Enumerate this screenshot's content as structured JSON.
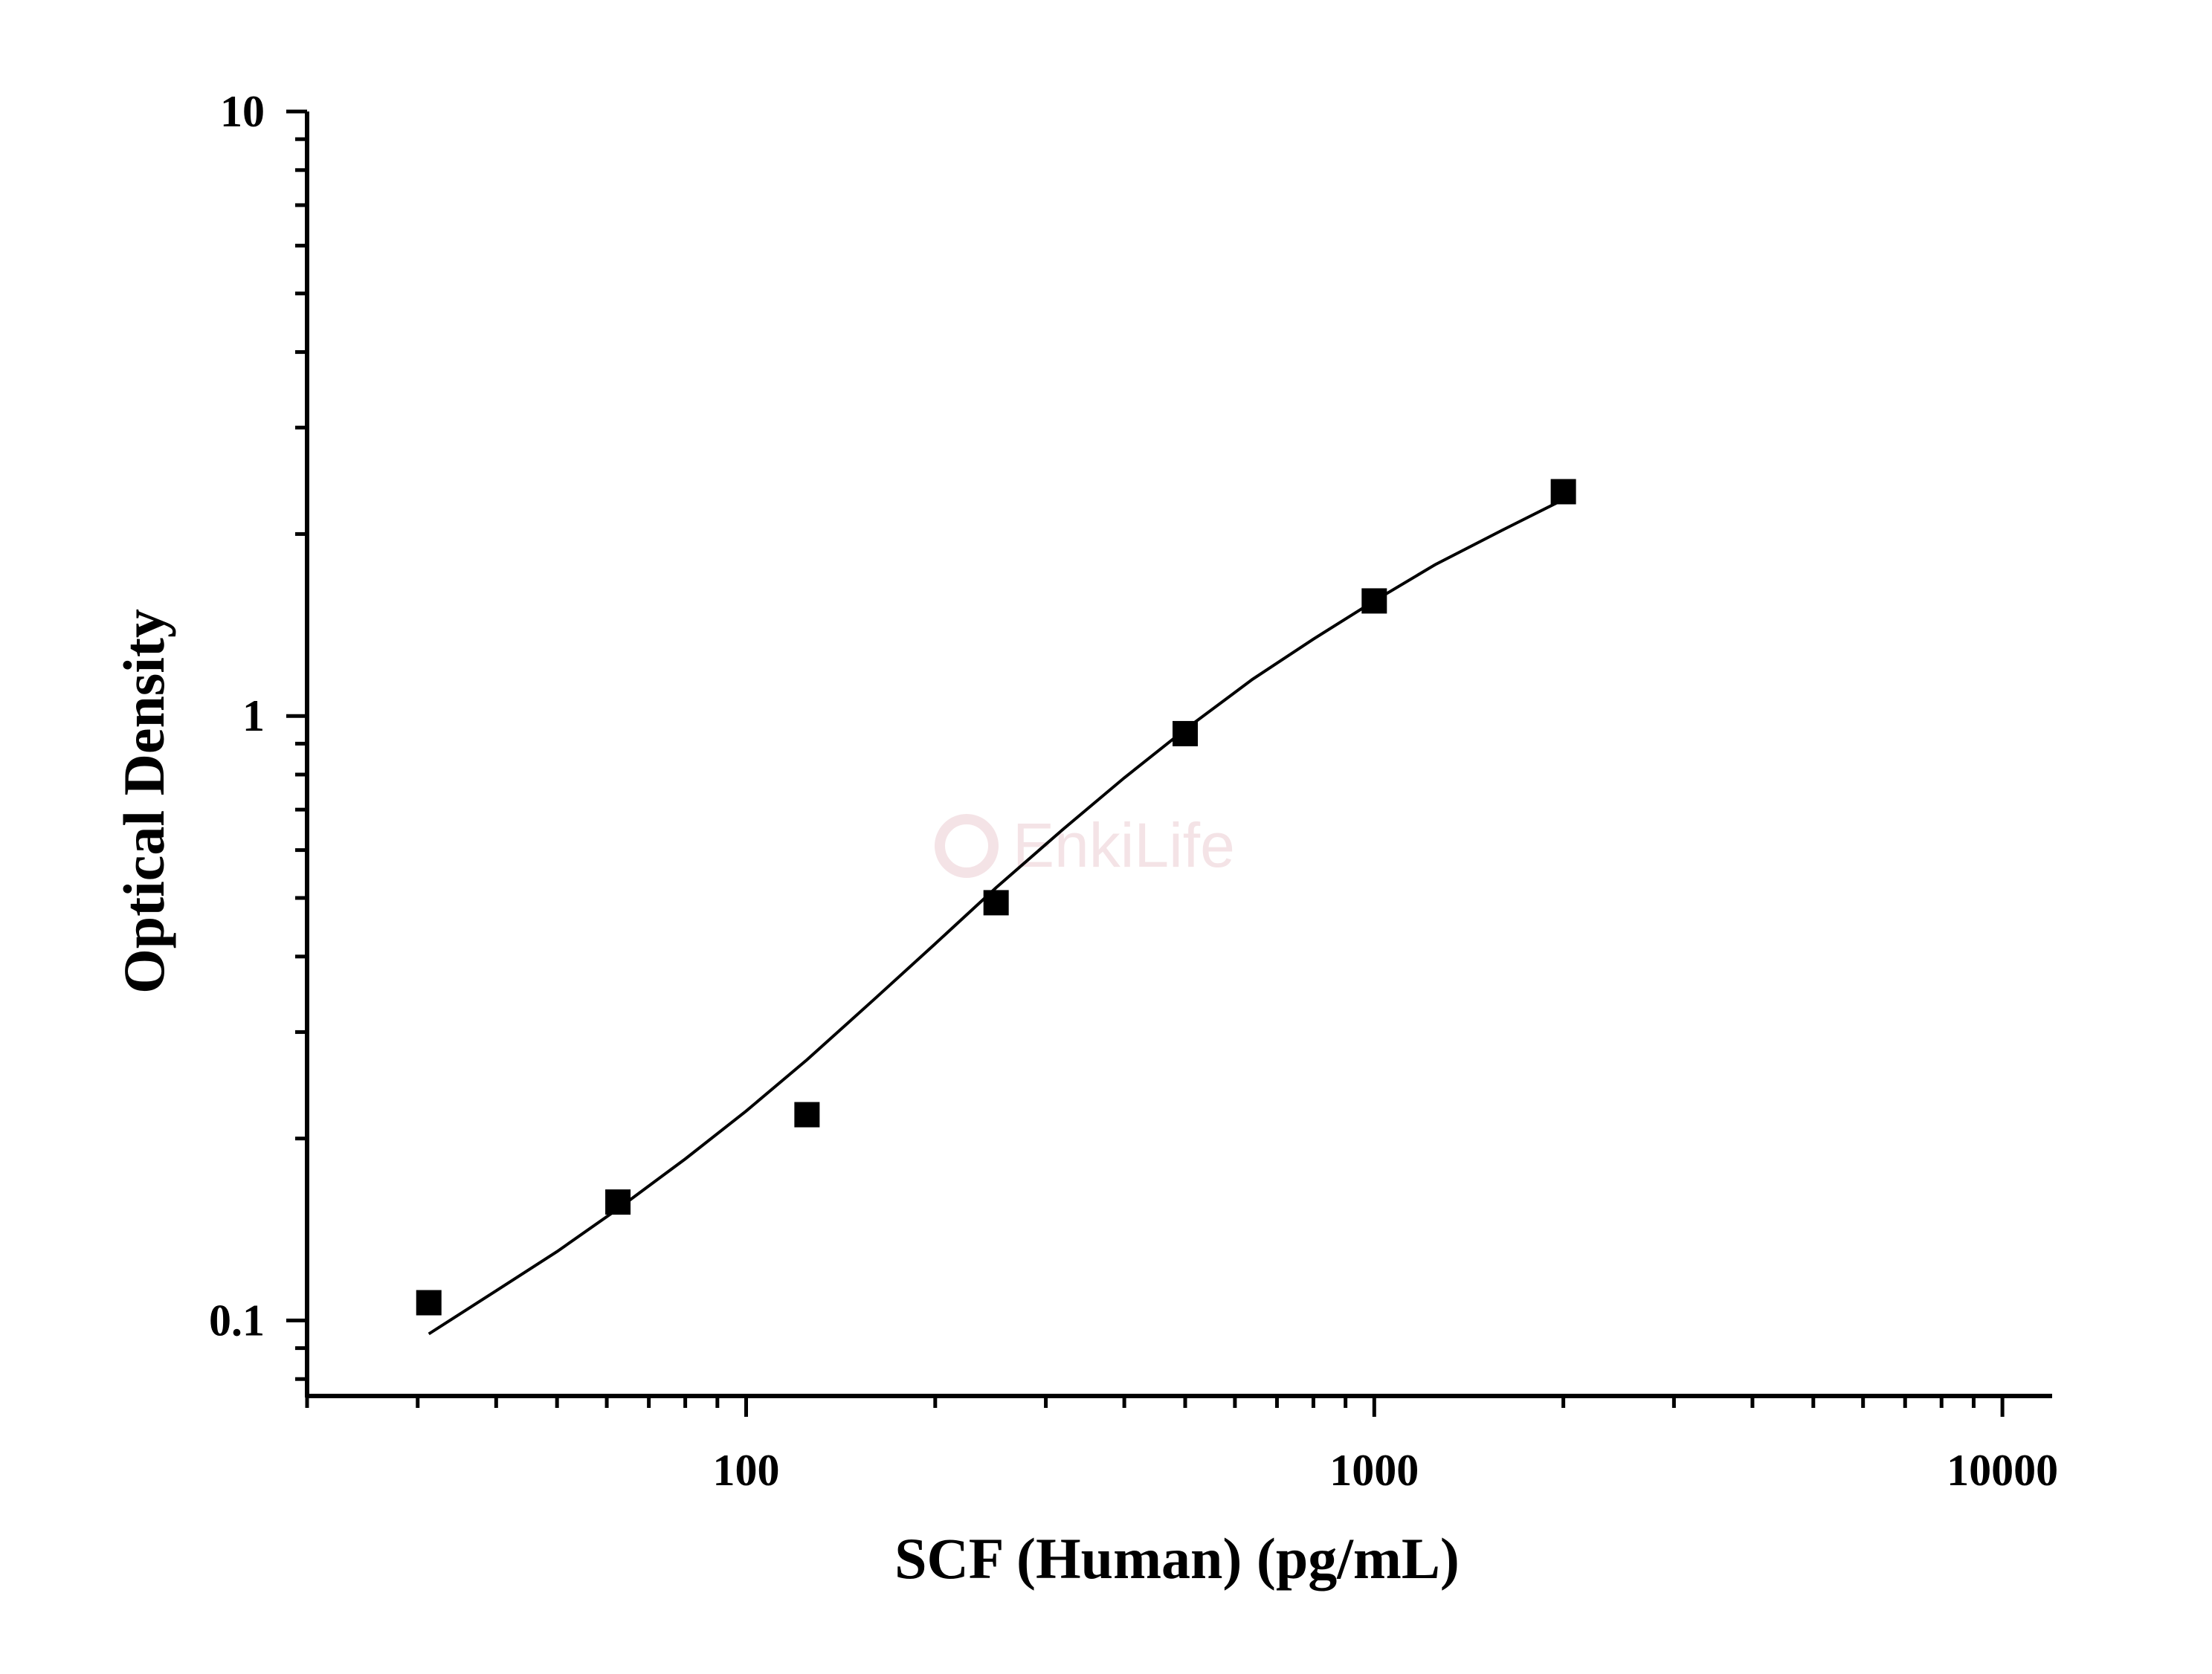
{
  "chart_data": {
    "type": "scatter",
    "xlabel": "SCF (Human) (pg/mL)",
    "ylabel": "Optical Density",
    "xscale": "log",
    "yscale": "log",
    "xlim": [
      20,
      12000
    ],
    "ylim": [
      0.075,
      10
    ],
    "x_tick_labels": [
      "100",
      "1000",
      "10000"
    ],
    "x_ticks": [
      100,
      1000,
      10000
    ],
    "y_tick_labels": [
      "0.1",
      "1",
      "10"
    ],
    "y_ticks": [
      0.1,
      1,
      10
    ],
    "grid": false,
    "legend": "none",
    "watermark": "EnkiLife",
    "points": {
      "x": [
        31.25,
        62.5,
        125,
        250,
        500,
        1000,
        2000
      ],
      "y": [
        0.107,
        0.157,
        0.219,
        0.491,
        0.935,
        1.55,
        2.35
      ]
    },
    "fit_curve": {
      "x": [
        31.25,
        40,
        50,
        62.5,
        80,
        100,
        125,
        160,
        200,
        250,
        320,
        400,
        500,
        640,
        800,
        1000,
        1250,
        1600,
        2000
      ],
      "y": [
        0.095,
        0.112,
        0.13,
        0.153,
        0.185,
        0.222,
        0.27,
        0.34,
        0.42,
        0.52,
        0.65,
        0.79,
        0.95,
        1.15,
        1.34,
        1.55,
        1.78,
        2.03,
        2.28
      ]
    },
    "colors": {
      "axis": "#000000",
      "marker": "#000000",
      "curve": "#000000",
      "watermark": "#f4e3e6"
    }
  }
}
